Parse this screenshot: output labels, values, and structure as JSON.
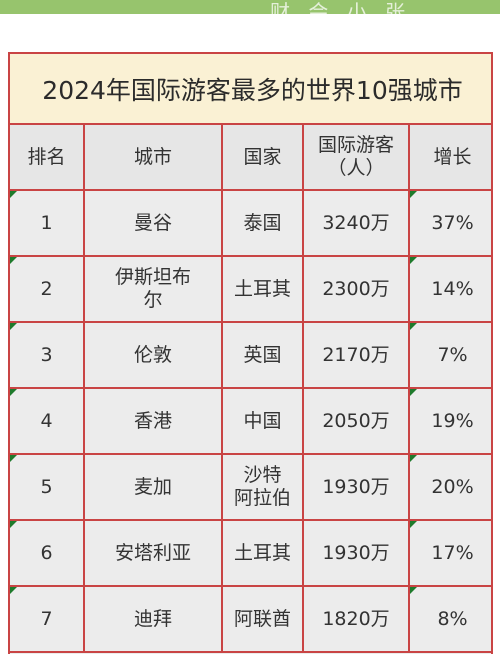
{
  "banner_watermark": "财 会 小 张",
  "table": {
    "title": "2024年国际游客最多的世界10强城市",
    "headers": {
      "rank": "排名",
      "city": "城市",
      "country": "国家",
      "visitors_line1": "国际游客",
      "visitors_line2": "（人）",
      "growth": "增长"
    },
    "rows": [
      {
        "rank": "1",
        "city": "曼谷",
        "country": "泰国",
        "visitors": "3240万",
        "growth": "37%"
      },
      {
        "rank": "2",
        "city_line1": "伊斯坦布",
        "city_line2": "尔",
        "country": "土耳其",
        "visitors": "2300万",
        "growth": "14%"
      },
      {
        "rank": "3",
        "city": "伦敦",
        "country": "英国",
        "visitors": "2170万",
        "growth": "7%"
      },
      {
        "rank": "4",
        "city": "香港",
        "country": "中国",
        "visitors": "2050万",
        "growth": "19%"
      },
      {
        "rank": "5",
        "city": "麦加",
        "country_line1": "沙特",
        "country_line2": "阿拉伯",
        "visitors": "1930万",
        "growth": "20%"
      },
      {
        "rank": "6",
        "city": "安塔利亚",
        "country": "土耳其",
        "visitors": "1930万",
        "growth": "17%"
      },
      {
        "rank": "7",
        "city": "迪拜",
        "country": "阿联酋",
        "visitors": "1820万",
        "growth": "8%"
      }
    ]
  }
}
